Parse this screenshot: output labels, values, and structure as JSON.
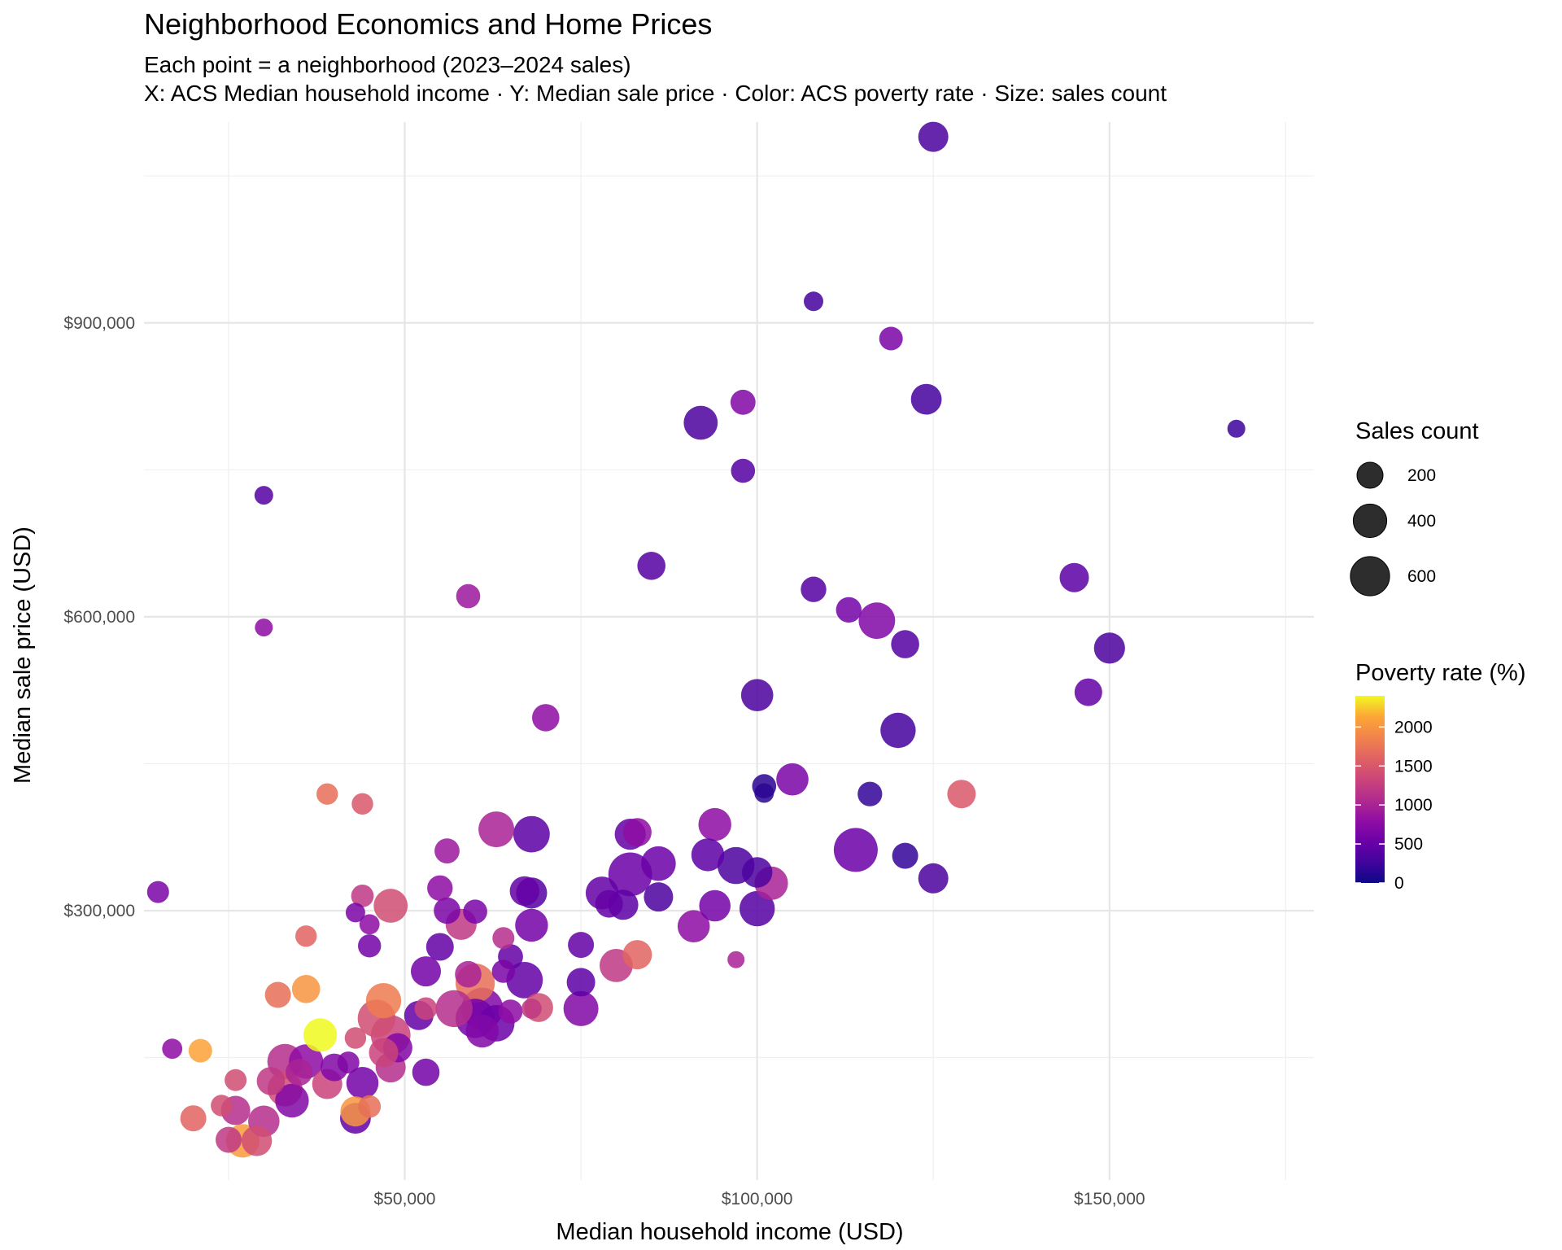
{
  "chart_data": {
    "type": "scatter",
    "title": "Neighborhood Economics and Home Prices",
    "subtitle_lines": [
      "Each point = a neighborhood (2023–2024 sales)",
      "X: ACS Median household income · Y: Median sale price · Color: ACS poverty rate · Size: sales count"
    ],
    "xlabel": "Median household income (USD)",
    "ylabel": "Median sale price (USD)",
    "xlim": [
      13000,
      179000
    ],
    "ylim": [
      25000,
      1105000
    ],
    "x_ticks": [
      {
        "value": 50000,
        "label": "$50,000"
      },
      {
        "value": 100000,
        "label": "$100,000"
      },
      {
        "value": 150000,
        "label": "$150,000"
      }
    ],
    "y_ticks": [
      {
        "value": 300000,
        "label": "$300,000"
      },
      {
        "value": 600000,
        "label": "$600,000"
      },
      {
        "value": 900000,
        "label": "$900,000"
      }
    ],
    "x_minor": [
      25000,
      75000,
      125000,
      175000
    ],
    "y_minor": [
      150000,
      450000,
      750000,
      1050000
    ],
    "grid": true,
    "size_legend": {
      "title": "Sales count",
      "entries": [
        {
          "value": 200,
          "label": "200"
        },
        {
          "value": 400,
          "label": "400"
        },
        {
          "value": 600,
          "label": "600"
        }
      ]
    },
    "color_legend": {
      "title": "Poverty rate (%)",
      "palette": "plasma",
      "range": [
        0,
        2400
      ],
      "ticks": [
        {
          "value": 0,
          "label": "0"
        },
        {
          "value": 500,
          "label": "500"
        },
        {
          "value": 1000,
          "label": "1000"
        },
        {
          "value": 1500,
          "label": "1500"
        },
        {
          "value": 2000,
          "label": "2000"
        }
      ]
    },
    "points": [
      [
        125000,
        1090000,
        300,
        350
      ],
      [
        108000,
        922000,
        80,
        300
      ],
      [
        119000,
        884000,
        150,
        650
      ],
      [
        124000,
        822000,
        320,
        300
      ],
      [
        98000,
        819000,
        180,
        700
      ],
      [
        168000,
        792000,
        60,
        250
      ],
      [
        92000,
        798000,
        420,
        350
      ],
      [
        98000,
        749000,
        160,
        400
      ],
      [
        30000,
        724000,
        70,
        400
      ],
      [
        85000,
        652000,
        250,
        400
      ],
      [
        145000,
        640000,
        280,
        450
      ],
      [
        108000,
        628000,
        190,
        400
      ],
      [
        59000,
        621000,
        160,
        900
      ],
      [
        113000,
        607000,
        190,
        600
      ],
      [
        117000,
        596000,
        500,
        700
      ],
      [
        121000,
        572000,
        250,
        400
      ],
      [
        150000,
        568000,
        330,
        350
      ],
      [
        30000,
        589000,
        60,
        800
      ],
      [
        147000,
        523000,
        240,
        500
      ],
      [
        100000,
        520000,
        360,
        350
      ],
      [
        70000,
        497000,
        230,
        800
      ],
      [
        120000,
        484000,
        460,
        300
      ],
      [
        105000,
        434000,
        360,
        650
      ],
      [
        101000,
        427000,
        160,
        150
      ],
      [
        101000,
        420000,
        80,
        150
      ],
      [
        116000,
        419000,
        170,
        200
      ],
      [
        129000,
        419000,
        260,
        1500
      ],
      [
        39000,
        419000,
        110,
        1700
      ],
      [
        44000,
        409000,
        110,
        1500
      ],
      [
        63000,
        383000,
        480,
        1000
      ],
      [
        68000,
        378000,
        500,
        450
      ],
      [
        82000,
        378000,
        330,
        500
      ],
      [
        83000,
        380000,
        260,
        800
      ],
      [
        94000,
        388000,
        380,
        800
      ],
      [
        114000,
        362000,
        800,
        550
      ],
      [
        56000,
        361000,
        180,
        900
      ],
      [
        86000,
        348000,
        440,
        550
      ],
      [
        93000,
        357000,
        380,
        450
      ],
      [
        82000,
        337000,
        790,
        550
      ],
      [
        97000,
        346000,
        520,
        350
      ],
      [
        100000,
        339000,
        310,
        350
      ],
      [
        102000,
        328000,
        400,
        1000
      ],
      [
        121000,
        356000,
        200,
        200
      ],
      [
        125000,
        333000,
        300,
        350
      ],
      [
        15000,
        319000,
        120,
        650
      ],
      [
        55000,
        323000,
        190,
        800
      ],
      [
        67000,
        320000,
        290,
        500
      ],
      [
        68000,
        318000,
        330,
        400
      ],
      [
        78000,
        318000,
        380,
        500
      ],
      [
        79000,
        307000,
        240,
        500
      ],
      [
        81000,
        306000,
        300,
        450
      ],
      [
        86000,
        314000,
        280,
        350
      ],
      [
        94000,
        305000,
        340,
        600
      ],
      [
        100000,
        302000,
        460,
        400
      ],
      [
        44000,
        315000,
        130,
        1200
      ],
      [
        48000,
        305000,
        420,
        1400
      ],
      [
        56000,
        300000,
        210,
        650
      ],
      [
        60000,
        299000,
        160,
        650
      ],
      [
        43000,
        298000,
        80,
        650
      ],
      [
        91000,
        284000,
        360,
        800
      ],
      [
        58000,
        286000,
        330,
        1200
      ],
      [
        68000,
        285000,
        380,
        600
      ],
      [
        45000,
        286000,
        90,
        800
      ],
      [
        36000,
        274000,
        110,
        1600
      ],
      [
        64000,
        272000,
        120,
        1100
      ],
      [
        45000,
        264000,
        140,
        600
      ],
      [
        55000,
        263000,
        240,
        500
      ],
      [
        65000,
        253000,
        180,
        500
      ],
      [
        75000,
        265000,
        200,
        500
      ],
      [
        83000,
        255000,
        280,
        1600
      ],
      [
        80000,
        244000,
        390,
        1200
      ],
      [
        97000,
        250000,
        50,
        1000
      ],
      [
        53000,
        238000,
        300,
        600
      ],
      [
        59000,
        235000,
        210,
        1000
      ],
      [
        60000,
        226000,
        600,
        1700
      ],
      [
        64000,
        238000,
        140,
        650
      ],
      [
        67000,
        229000,
        500,
        500
      ],
      [
        75000,
        227000,
        260,
        450
      ],
      [
        32000,
        214000,
        200,
        1700
      ],
      [
        36000,
        220000,
        250,
        2000
      ],
      [
        47000,
        208000,
        460,
        1800
      ],
      [
        75000,
        200000,
        450,
        700
      ],
      [
        61000,
        200000,
        700,
        700
      ],
      [
        57000,
        200000,
        520,
        1100
      ],
      [
        65000,
        197000,
        160,
        800
      ],
      [
        69000,
        201000,
        270,
        1400
      ],
      [
        52000,
        193000,
        280,
        500
      ],
      [
        53000,
        200000,
        130,
        1300
      ],
      [
        68000,
        200000,
        90,
        1200
      ],
      [
        60000,
        190000,
        600,
        600
      ],
      [
        63000,
        185000,
        500,
        550
      ],
      [
        61000,
        177000,
        380,
        700
      ],
      [
        46000,
        190000,
        550,
        1400
      ],
      [
        48000,
        173000,
        620,
        1300
      ],
      [
        38000,
        173000,
        400,
        2400
      ],
      [
        43000,
        170000,
        110,
        1400
      ],
      [
        49000,
        160000,
        280,
        700
      ],
      [
        42000,
        145000,
        120,
        700
      ],
      [
        47000,
        155000,
        280,
        1300
      ],
      [
        48000,
        140000,
        300,
        1100
      ],
      [
        33000,
        146000,
        460,
        1100
      ],
      [
        36000,
        146000,
        430,
        800
      ],
      [
        17000,
        159000,
        90,
        800
      ],
      [
        21000,
        157000,
        150,
        2100
      ],
      [
        40000,
        140000,
        240,
        700
      ],
      [
        53000,
        135000,
        230,
        600
      ],
      [
        35000,
        135000,
        220,
        1000
      ],
      [
        44000,
        124000,
        360,
        600
      ],
      [
        39000,
        123000,
        300,
        1300
      ],
      [
        26000,
        127000,
        120,
        1400
      ],
      [
        31000,
        126000,
        250,
        1200
      ],
      [
        33000,
        118000,
        450,
        1400
      ],
      [
        34000,
        106000,
        410,
        700
      ],
      [
        45000,
        100000,
        130,
        1700
      ],
      [
        43000,
        95000,
        300,
        2000
      ],
      [
        24000,
        101000,
        110,
        1400
      ],
      [
        26000,
        96000,
        280,
        1100
      ],
      [
        20000,
        88000,
        200,
        1600
      ],
      [
        30000,
        85000,
        340,
        1100
      ],
      [
        43000,
        88000,
        320,
        500
      ],
      [
        25000,
        66000,
        200,
        1200
      ],
      [
        29000,
        65000,
        310,
        1400
      ],
      [
        27000,
        65000,
        400,
        2050
      ]
    ]
  }
}
